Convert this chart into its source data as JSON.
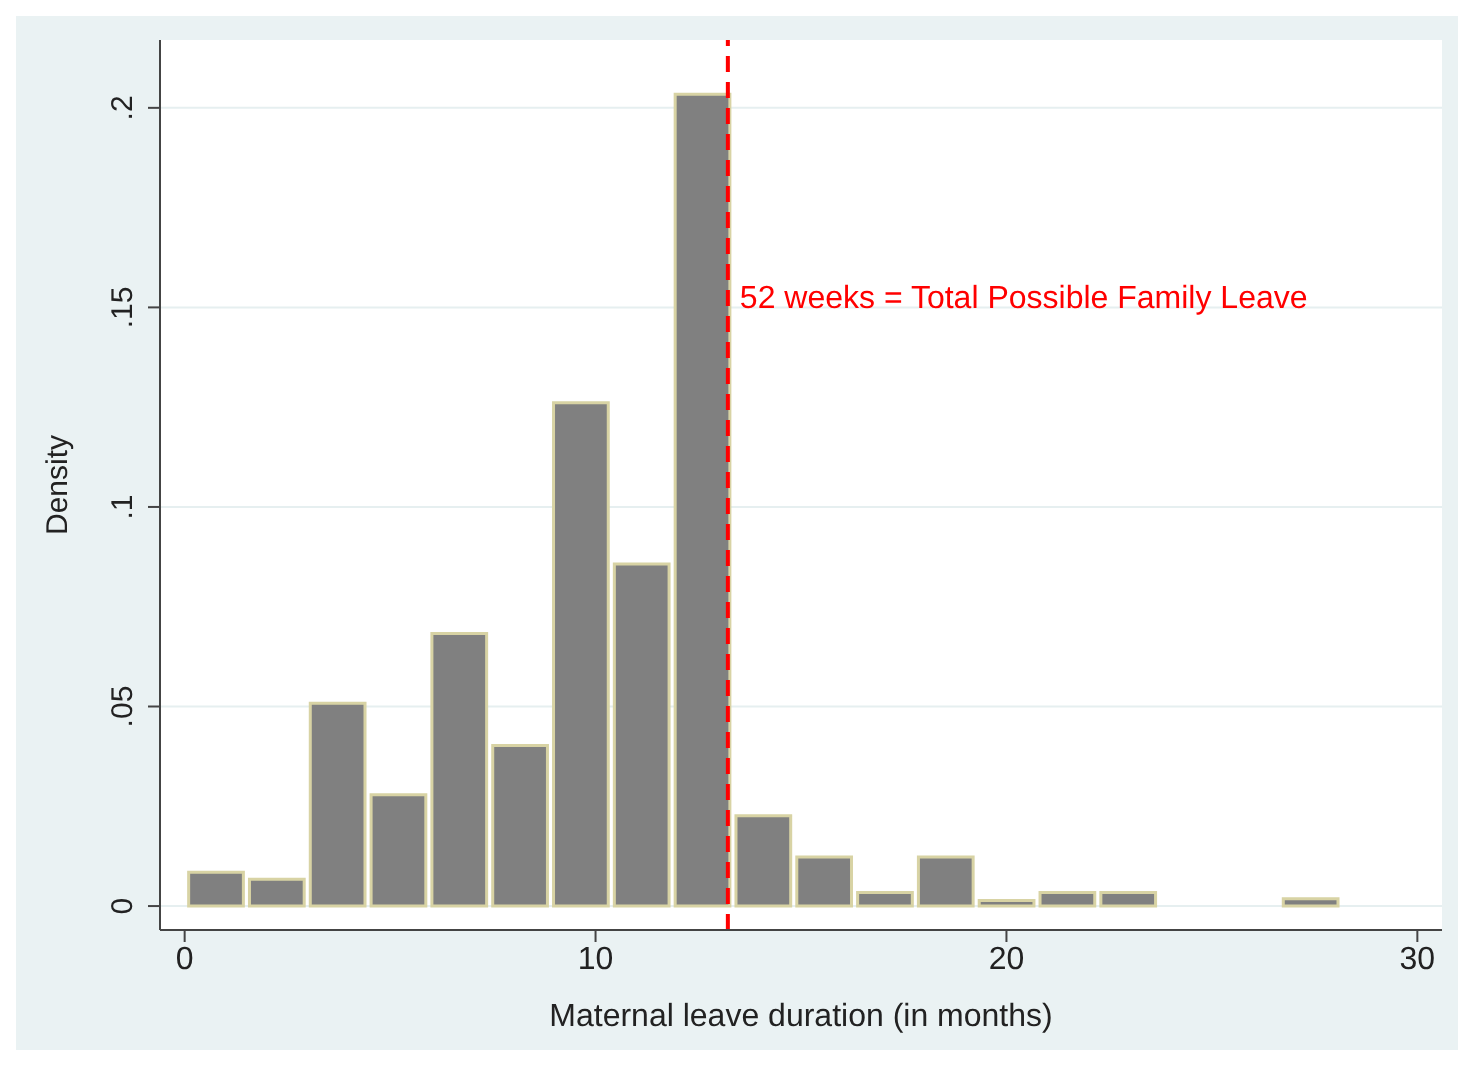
{
  "chart_data": {
    "type": "histogram",
    "xlabel": "Maternal leave duration (in months)",
    "ylabel": "Density",
    "bins": [
      0,
      1.48,
      2.96,
      4.44,
      5.92,
      7.4,
      8.88,
      10.36,
      11.84,
      13.32,
      14.8,
      16.28,
      17.76,
      19.24,
      20.72,
      22.2,
      23.68,
      25.16,
      26.64,
      28.12
    ],
    "values": [
      0.0085,
      0.0067,
      0.0508,
      0.0279,
      0.0683,
      0.0402,
      0.1261,
      0.0857,
      0.2034,
      0.0226,
      0.0123,
      0.0034,
      0.0123,
      0.0014,
      0.0034,
      0.0034,
      0,
      0,
      0.0018
    ],
    "color": "#808080",
    "xlim": [
      -0.6,
      30.6
    ],
    "xticks": [
      0,
      10,
      20,
      30
    ],
    "ylim": [
      -0.006,
      0.217
    ],
    "yticks": [
      0,
      {
        "value": 0.05,
        "label": ".05"
      },
      {
        "value": 0.1,
        "label": ".1"
      },
      {
        "value": 0.15,
        "label": ".15"
      },
      {
        "value": 0.2,
        "label": ".2"
      }
    ],
    "grid": "y",
    "ref_lines": [
      {
        "axis": "x",
        "value": 13.22,
        "label": "52 weeks = Total Possible Family Leave",
        "color": "#ff0000",
        "line_style": "dashed"
      }
    ]
  }
}
